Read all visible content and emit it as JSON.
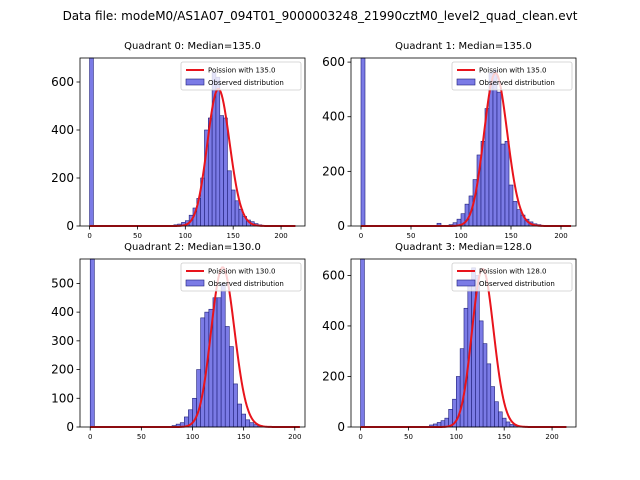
{
  "figure": {
    "title": "Data file: modeM0/AS1A07_094T01_9000003248_21990cztM0_level2_quad_clean.evt"
  },
  "colors": {
    "bar_fill": "#7b7be6",
    "bar_edge": "#1f1f7a",
    "curve": "#e8141c",
    "axis": "#000000"
  },
  "chart_data": [
    {
      "type": "bar",
      "title": "Quadrant 0: Median=135.0",
      "xlim": [
        -10,
        225
      ],
      "ylim": [
        0,
        700
      ],
      "xticks": [
        0,
        50,
        100,
        150,
        200
      ],
      "yticks": [
        0,
        200,
        400,
        600
      ],
      "legend_position": "top-right",
      "legend": {
        "curve": "Poission with 135.0",
        "bars": "Observed distribution"
      },
      "poisson_mean": 135.0,
      "poisson_range": [
        0,
        215
      ],
      "bin_width": 4,
      "bins": [
        {
          "x": 0,
          "count": 700
        },
        {
          "x": 88,
          "count": 5
        },
        {
          "x": 92,
          "count": 8
        },
        {
          "x": 96,
          "count": 15
        },
        {
          "x": 100,
          "count": 22
        },
        {
          "x": 104,
          "count": 45
        },
        {
          "x": 108,
          "count": 75
        },
        {
          "x": 112,
          "count": 115
        },
        {
          "x": 116,
          "count": 200
        },
        {
          "x": 120,
          "count": 400
        },
        {
          "x": 124,
          "count": 450
        },
        {
          "x": 128,
          "count": 640
        },
        {
          "x": 132,
          "count": 620
        },
        {
          "x": 136,
          "count": 460
        },
        {
          "x": 140,
          "count": 450
        },
        {
          "x": 144,
          "count": 230
        },
        {
          "x": 148,
          "count": 150
        },
        {
          "x": 152,
          "count": 105
        },
        {
          "x": 156,
          "count": 70
        },
        {
          "x": 160,
          "count": 40
        },
        {
          "x": 164,
          "count": 25
        },
        {
          "x": 168,
          "count": 18
        },
        {
          "x": 172,
          "count": 10
        },
        {
          "x": 176,
          "count": 5
        }
      ]
    },
    {
      "type": "bar",
      "title": "Quadrant 1: Median=135.0",
      "xlim": [
        -10,
        215
      ],
      "ylim": [
        0,
        615
      ],
      "xticks": [
        0,
        50,
        100,
        150,
        200
      ],
      "yticks": [
        0,
        200,
        400,
        600
      ],
      "legend_position": "top-right",
      "legend": {
        "curve": "Poission with 135.0",
        "bars": "Observed distribution"
      },
      "poisson_mean": 135.0,
      "poisson_range": [
        0,
        210
      ],
      "bin_width": 4,
      "bins": [
        {
          "x": 0,
          "count": 615
        },
        {
          "x": 76,
          "count": 10
        },
        {
          "x": 88,
          "count": 5
        },
        {
          "x": 92,
          "count": 12
        },
        {
          "x": 96,
          "count": 25
        },
        {
          "x": 100,
          "count": 45
        },
        {
          "x": 104,
          "count": 80
        },
        {
          "x": 108,
          "count": 110
        },
        {
          "x": 112,
          "count": 170
        },
        {
          "x": 116,
          "count": 260
        },
        {
          "x": 120,
          "count": 310
        },
        {
          "x": 124,
          "count": 430
        },
        {
          "x": 128,
          "count": 560
        },
        {
          "x": 132,
          "count": 570
        },
        {
          "x": 136,
          "count": 490
        },
        {
          "x": 140,
          "count": 300
        },
        {
          "x": 144,
          "count": 310
        },
        {
          "x": 148,
          "count": 150
        },
        {
          "x": 152,
          "count": 90
        },
        {
          "x": 156,
          "count": 60
        },
        {
          "x": 160,
          "count": 40
        },
        {
          "x": 164,
          "count": 25
        },
        {
          "x": 168,
          "count": 15
        },
        {
          "x": 172,
          "count": 8
        },
        {
          "x": 176,
          "count": 5
        }
      ]
    },
    {
      "type": "bar",
      "title": "Quadrant 2: Median=130.0",
      "xlim": [
        -10,
        210
      ],
      "ylim": [
        0,
        585
      ],
      "xticks": [
        0,
        50,
        100,
        150,
        200
      ],
      "yticks": [
        0,
        100,
        200,
        300,
        400,
        500
      ],
      "legend_position": "top-right",
      "legend": {
        "curve": "Poission with 130.0",
        "bars": "Observed distribution"
      },
      "poisson_mean": 130.0,
      "poisson_range": [
        0,
        205
      ],
      "bin_width": 4,
      "bins": [
        {
          "x": 0,
          "count": 585
        },
        {
          "x": 80,
          "count": 5
        },
        {
          "x": 84,
          "count": 10
        },
        {
          "x": 88,
          "count": 15
        },
        {
          "x": 92,
          "count": 35
        },
        {
          "x": 96,
          "count": 60
        },
        {
          "x": 100,
          "count": 100
        },
        {
          "x": 104,
          "count": 200
        },
        {
          "x": 108,
          "count": 380
        },
        {
          "x": 112,
          "count": 400
        },
        {
          "x": 116,
          "count": 410
        },
        {
          "x": 120,
          "count": 450
        },
        {
          "x": 124,
          "count": 450
        },
        {
          "x": 128,
          "count": 500
        },
        {
          "x": 132,
          "count": 350
        },
        {
          "x": 136,
          "count": 280
        },
        {
          "x": 140,
          "count": 150
        },
        {
          "x": 144,
          "count": 80
        },
        {
          "x": 148,
          "count": 45
        },
        {
          "x": 152,
          "count": 25
        },
        {
          "x": 156,
          "count": 15
        },
        {
          "x": 160,
          "count": 8
        },
        {
          "x": 164,
          "count": 5
        }
      ]
    },
    {
      "type": "bar",
      "title": "Quadrant 3: Median=128.0",
      "xlim": [
        -10,
        225
      ],
      "ylim": [
        0,
        665
      ],
      "xticks": [
        0,
        50,
        100,
        150,
        200
      ],
      "yticks": [
        0,
        200,
        400,
        600
      ],
      "legend_position": "top-right",
      "legend": {
        "curve": "Poission with 128.0",
        "bars": "Observed distribution"
      },
      "poisson_mean": 128.0,
      "poisson_range": [
        0,
        215
      ],
      "bin_width": 4,
      "bins": [
        {
          "x": 0,
          "count": 665
        },
        {
          "x": 72,
          "count": 8
        },
        {
          "x": 76,
          "count": 12
        },
        {
          "x": 80,
          "count": 18
        },
        {
          "x": 84,
          "count": 25
        },
        {
          "x": 88,
          "count": 35
        },
        {
          "x": 92,
          "count": 70
        },
        {
          "x": 96,
          "count": 110
        },
        {
          "x": 100,
          "count": 200
        },
        {
          "x": 104,
          "count": 310
        },
        {
          "x": 108,
          "count": 470
        },
        {
          "x": 112,
          "count": 560
        },
        {
          "x": 116,
          "count": 630
        },
        {
          "x": 120,
          "count": 600
        },
        {
          "x": 124,
          "count": 420
        },
        {
          "x": 128,
          "count": 330
        },
        {
          "x": 132,
          "count": 250
        },
        {
          "x": 136,
          "count": 160
        },
        {
          "x": 140,
          "count": 100
        },
        {
          "x": 144,
          "count": 60
        },
        {
          "x": 148,
          "count": 35
        },
        {
          "x": 152,
          "count": 20
        },
        {
          "x": 156,
          "count": 10
        },
        {
          "x": 160,
          "count": 5
        }
      ]
    }
  ]
}
